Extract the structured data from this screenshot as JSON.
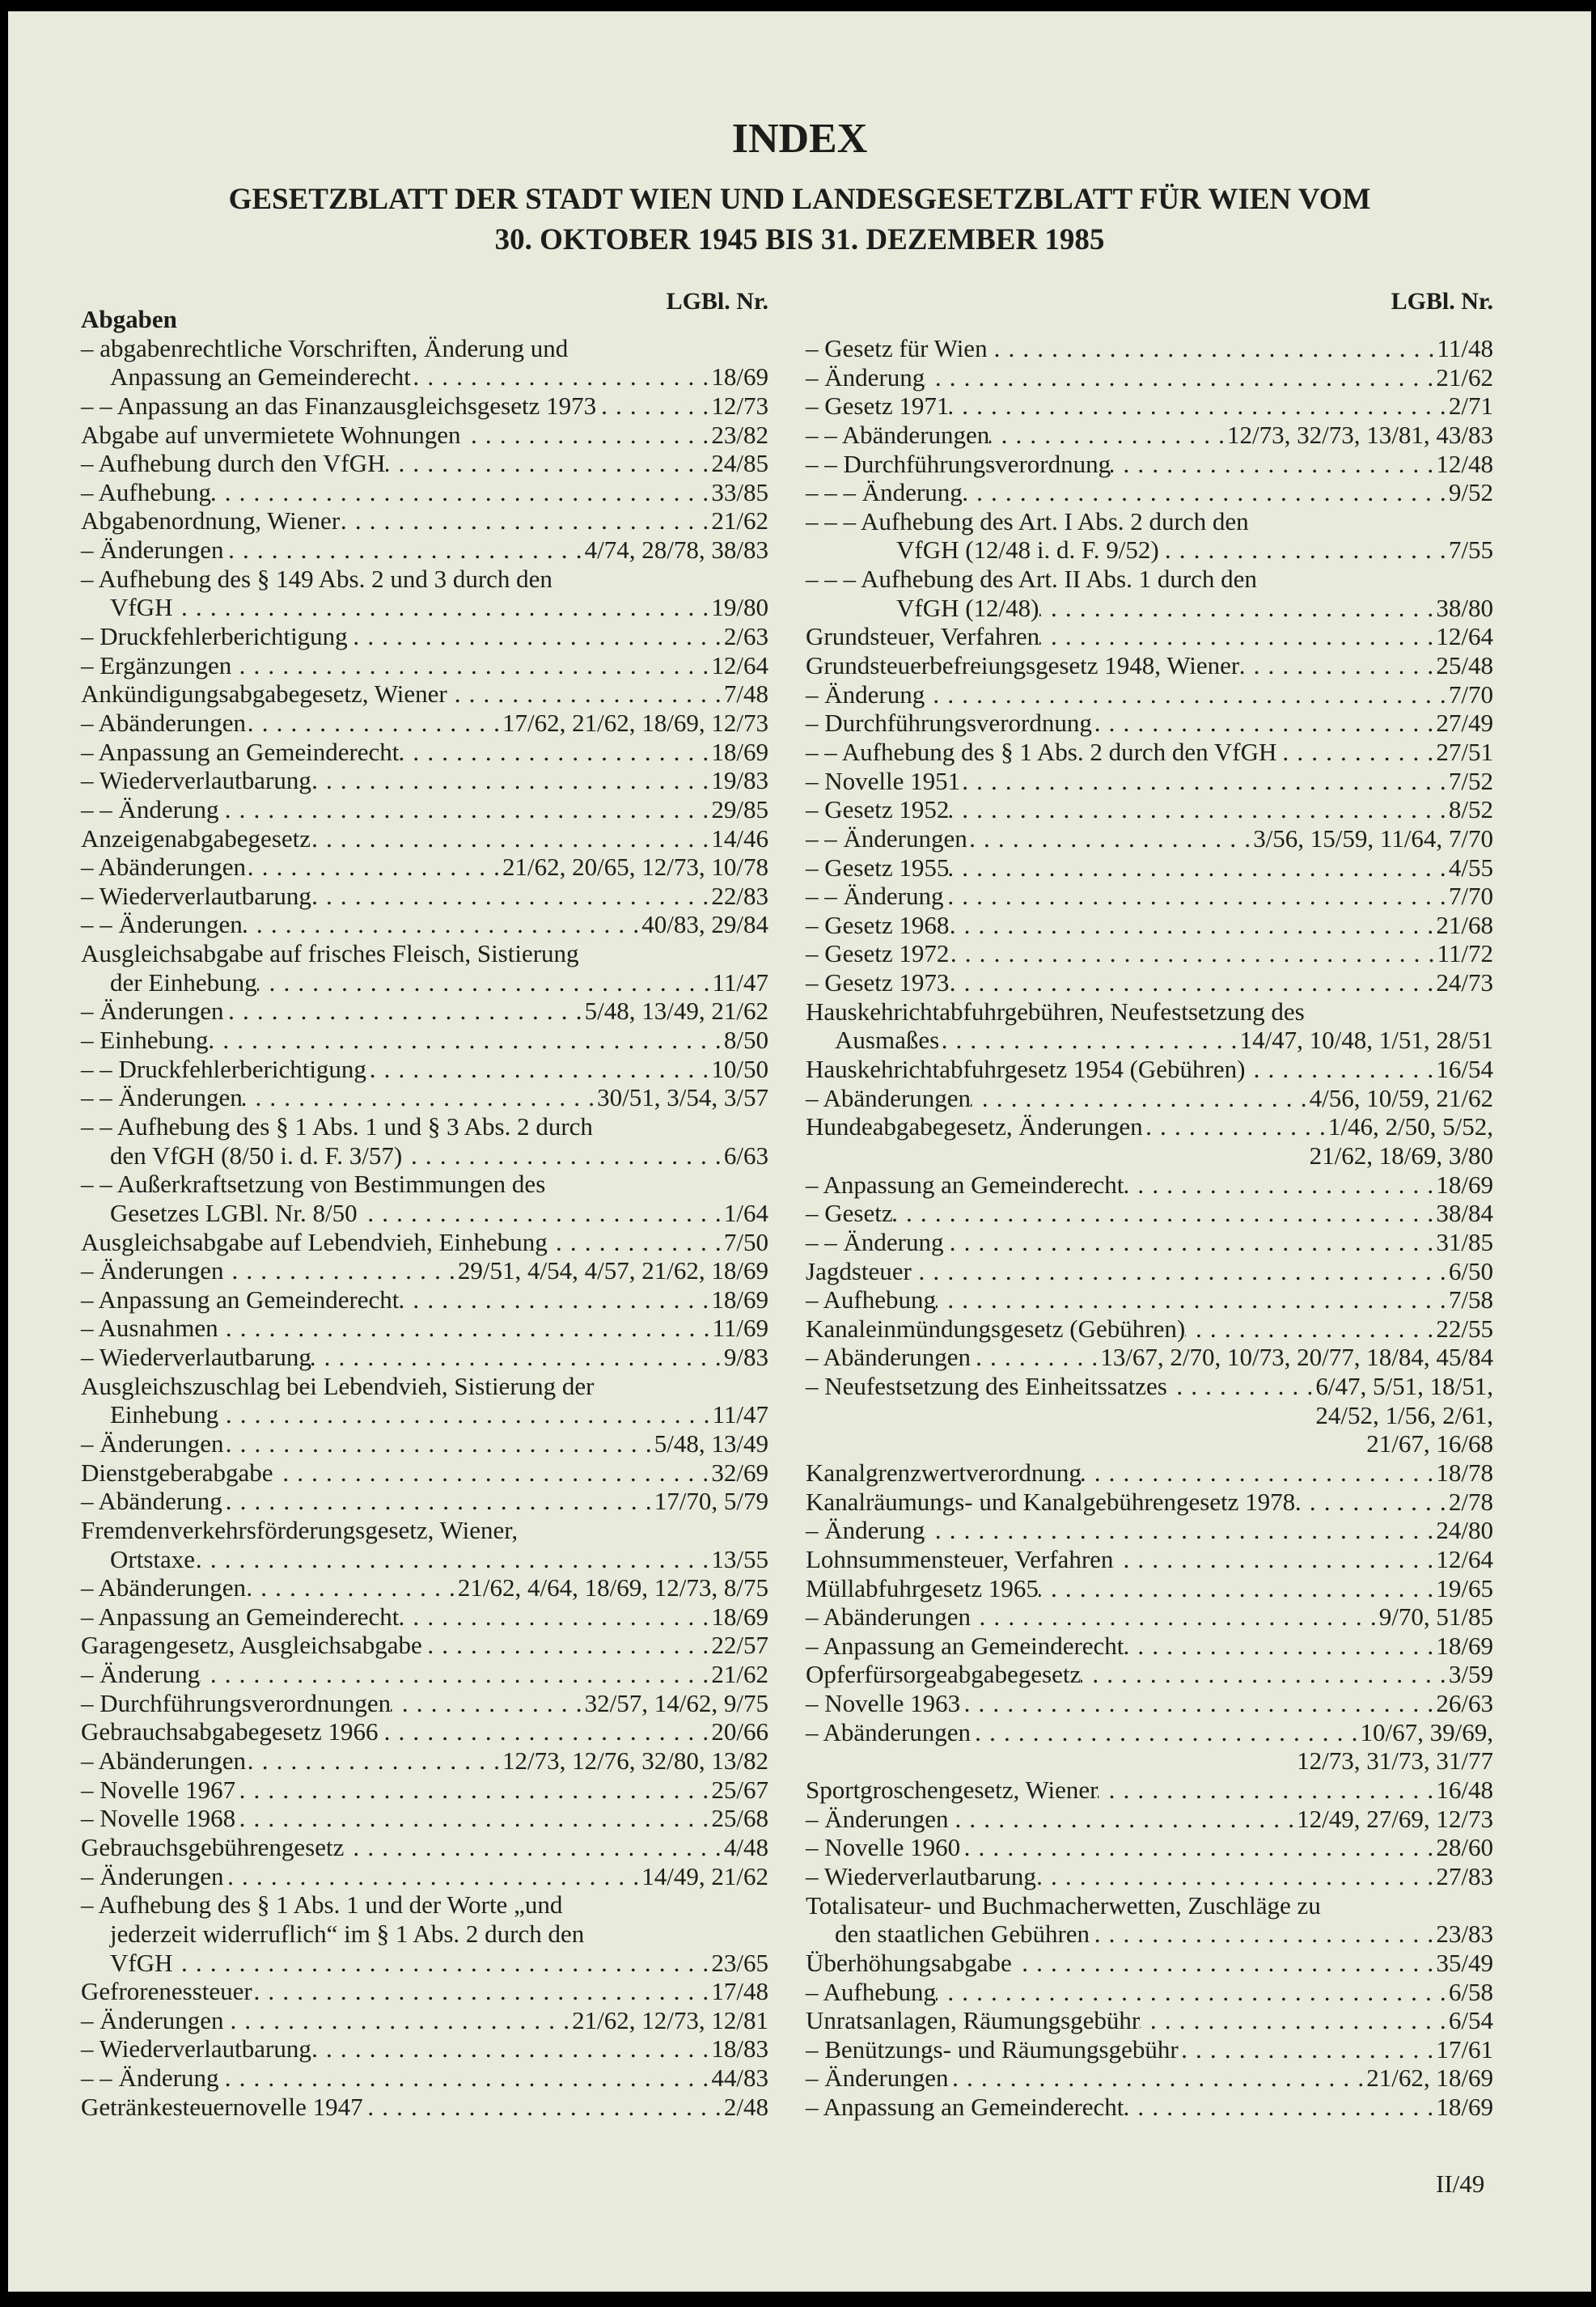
{
  "title": "INDEX",
  "subtitle": [
    "GESETZBLATT DER STADT WIEN UND LANDESGESETZBLATT FÜR WIEN VOM",
    "30. OKTOBER 1945 BIS 31. DEZEMBER 1985"
  ],
  "column_header": "LGBl. Nr.",
  "page_number": "II/49",
  "left": [
    {
      "t": "Abgaben",
      "head": true
    },
    {
      "t": "– abgabenrechtliche Vorschriften, Änderung und"
    },
    {
      "t": "Anpassung an Gemeinderecht",
      "r": "18/69",
      "cont": 1
    },
    {
      "t": "– – Anpassung an das Finanzausgleichsgesetz 1973",
      "r": "12/73"
    },
    {
      "t": "Abgabe auf unvermietete Wohnungen",
      "r": "23/82"
    },
    {
      "t": "– Aufhebung durch den VfGH",
      "r": "24/85"
    },
    {
      "t": "– Aufhebung",
      "r": "33/85"
    },
    {
      "t": "Abgabenordnung, Wiener",
      "r": "21/62"
    },
    {
      "t": "– Änderungen",
      "r": "4/74, 28/78, 38/83"
    },
    {
      "t": "– Aufhebung des § 149 Abs. 2 und 3 durch den"
    },
    {
      "t": "VfGH",
      "r": "19/80",
      "cont": 1
    },
    {
      "t": "– Druckfehlerberichtigung",
      "r": "2/63"
    },
    {
      "t": "– Ergänzungen",
      "r": "12/64"
    },
    {
      "t": "Ankündigungsabgabegesetz, Wiener",
      "r": "7/48"
    },
    {
      "t": "– Abänderungen",
      "r": "17/62, 21/62, 18/69, 12/73"
    },
    {
      "t": "– Anpassung an Gemeinderecht",
      "r": "18/69"
    },
    {
      "t": "– Wiederverlautbarung",
      "r": "19/83"
    },
    {
      "t": "– – Änderung",
      "r": "29/85"
    },
    {
      "t": "Anzeigenabgabegesetz",
      "r": "14/46"
    },
    {
      "t": "– Abänderungen",
      "r": "21/62, 20/65, 12/73, 10/78"
    },
    {
      "t": "– Wiederverlautbarung",
      "r": "22/83"
    },
    {
      "t": "– – Änderungen",
      "r": "40/83, 29/84"
    },
    {
      "t": "Ausgleichsabgabe auf frisches Fleisch, Sistierung"
    },
    {
      "t": "der Einhebung",
      "r": "11/47",
      "cont": 1
    },
    {
      "t": "– Änderungen",
      "r": "5/48, 13/49, 21/62"
    },
    {
      "t": "– Einhebung",
      "r": "8/50"
    },
    {
      "t": "– – Druckfehlerberichtigung",
      "r": "10/50"
    },
    {
      "t": "– – Änderungen",
      "r": "30/51, 3/54, 3/57"
    },
    {
      "t": "– – Aufhebung des § 1 Abs. 1 und § 3 Abs. 2 durch"
    },
    {
      "t": "den VfGH (8/50 i. d. F. 3/57)",
      "r": "6/63",
      "cont": 1
    },
    {
      "t": "– – Außerkraftsetzung von Bestimmungen des"
    },
    {
      "t": "Gesetzes LGBl. Nr. 8/50",
      "r": "1/64",
      "cont": 1
    },
    {
      "t": "Ausgleichsabgabe auf Lebendvieh, Einhebung",
      "r": "7/50"
    },
    {
      "t": "– Änderungen",
      "r": "29/51, 4/54, 4/57, 21/62, 18/69"
    },
    {
      "t": "– Anpassung an Gemeinderecht",
      "r": "18/69"
    },
    {
      "t": "– Ausnahmen",
      "r": "11/69"
    },
    {
      "t": "– Wiederverlautbarung",
      "r": "9/83"
    },
    {
      "t": "Ausgleichszuschlag bei Lebendvieh, Sistierung der"
    },
    {
      "t": "Einhebung",
      "r": "11/47",
      "cont": 1
    },
    {
      "t": "– Änderungen",
      "r": "5/48, 13/49"
    },
    {
      "t": "Dienstgeberabgabe",
      "r": "32/69"
    },
    {
      "t": "– Abänderung",
      "r": "17/70, 5/79"
    },
    {
      "t": "Fremdenverkehrsförderungsgesetz, Wiener,"
    },
    {
      "t": "Ortstaxe",
      "r": "13/55",
      "cont": 1
    },
    {
      "t": "– Abänderungen",
      "r": "21/62, 4/64, 18/69, 12/73, 8/75"
    },
    {
      "t": "– Anpassung an Gemeinderecht",
      "r": "18/69"
    },
    {
      "t": "Garagengesetz, Ausgleichsabgabe",
      "r": "22/57"
    },
    {
      "t": "– Änderung",
      "r": "21/62"
    },
    {
      "t": "– Durchführungsverordnungen",
      "r": "32/57, 14/62, 9/75"
    },
    {
      "t": "Gebrauchsabgabegesetz 1966",
      "r": "20/66"
    },
    {
      "t": "– Abänderungen",
      "r": "12/73, 12/76, 32/80, 13/82"
    },
    {
      "t": "– Novelle 1967",
      "r": "25/67"
    },
    {
      "t": "– Novelle 1968",
      "r": "25/68"
    },
    {
      "t": "Gebrauchsgebührengesetz",
      "r": "4/48"
    },
    {
      "t": "– Änderungen",
      "r": "14/49, 21/62"
    },
    {
      "t": "– Aufhebung des § 1 Abs. 1 und der Worte „und"
    },
    {
      "t": "jederzeit widerruflich“ im § 1 Abs. 2 durch den",
      "cont": 1
    },
    {
      "t": "VfGH",
      "r": "23/65",
      "cont": 1
    },
    {
      "t": "Gefrorenessteuer",
      "r": "17/48"
    },
    {
      "t": "– Änderungen",
      "r": "21/62, 12/73, 12/81"
    },
    {
      "t": "– Wiederverlautbarung",
      "r": "18/83"
    },
    {
      "t": "– – Änderung",
      "r": "44/83"
    },
    {
      "t": "Getränkesteuernovelle 1947",
      "r": "2/48"
    }
  ],
  "right": [
    {
      "t": "– Gesetz für Wien",
      "r": "11/48"
    },
    {
      "t": "– Änderung",
      "r": "21/62"
    },
    {
      "t": "– Gesetz 1971",
      "r": "2/71"
    },
    {
      "t": "– – Abänderungen",
      "r": "12/73, 32/73, 13/81, 43/83"
    },
    {
      "t": "– – Durchführungsverordnung",
      "r": "12/48"
    },
    {
      "t": "– – – Änderung",
      "r": "9/52"
    },
    {
      "t": "– – – Aufhebung des Art. I Abs. 2 durch den"
    },
    {
      "t": "VfGH (12/48 i. d. F. 9/52)",
      "r": "7/55",
      "cont": 3
    },
    {
      "t": "– – – Aufhebung des Art. II Abs. 1 durch den"
    },
    {
      "t": "VfGH (12/48)",
      "r": "38/80",
      "cont": 3
    },
    {
      "t": "Grundsteuer, Verfahren",
      "r": "12/64"
    },
    {
      "t": "Grundsteuerbefreiungsgesetz 1948, Wiener",
      "r": "25/48"
    },
    {
      "t": "– Änderung",
      "r": "7/70"
    },
    {
      "t": "– Durchführungsverordnung",
      "r": "27/49"
    },
    {
      "t": "– – Aufhebung des § 1 Abs. 2 durch den VfGH",
      "r": "27/51"
    },
    {
      "t": "– Novelle 1951",
      "r": "7/52"
    },
    {
      "t": "– Gesetz 1952",
      "r": "8/52"
    },
    {
      "t": "– – Änderungen",
      "r": "3/56, 15/59, 11/64, 7/70"
    },
    {
      "t": "– Gesetz 1955",
      "r": "4/55"
    },
    {
      "t": "– – Änderung",
      "r": "7/70"
    },
    {
      "t": "– Gesetz 1968",
      "r": "21/68"
    },
    {
      "t": "– Gesetz 1972",
      "r": "11/72"
    },
    {
      "t": "– Gesetz 1973",
      "r": "24/73"
    },
    {
      "t": "Hauskehrichtabfuhrgebühren, Neufestsetzung des"
    },
    {
      "t": "Ausmaßes",
      "r": "14/47, 10/48, 1/51, 28/51",
      "cont": 1
    },
    {
      "t": "Hauskehrichtabfuhrgesetz 1954 (Gebühren)",
      "r": "16/54"
    },
    {
      "t": "– Abänderungen",
      "r": "4/56, 10/59, 21/62"
    },
    {
      "t": "Hundeabgabegesetz, Änderungen",
      "r": "1/46, 2/50, 5/52,"
    },
    {
      "r": "21/62, 18/69, 3/80"
    },
    {
      "t": "– Anpassung an Gemeinderecht",
      "r": "18/69"
    },
    {
      "t": "– Gesetz",
      "r": "38/84"
    },
    {
      "t": "– – Änderung",
      "r": "31/85"
    },
    {
      "t": "Jagdsteuer",
      "r": "6/50"
    },
    {
      "t": "– Aufhebung",
      "r": "7/58"
    },
    {
      "t": "Kanaleinmündungsgesetz (Gebühren)",
      "r": "22/55"
    },
    {
      "t": "– Abänderungen",
      "r": "13/67, 2/70, 10/73, 20/77, 18/84, 45/84"
    },
    {
      "t": "– Neufestsetzung des Einheitssatzes",
      "r": "6/47, 5/51, 18/51,"
    },
    {
      "r": "24/52, 1/56, 2/61,"
    },
    {
      "r": "21/67, 16/68"
    },
    {
      "t": "Kanalgrenzwertverordnung",
      "r": "18/78"
    },
    {
      "t": "Kanalräumungs- und Kanalgebührengesetz 1978",
      "r": "2/78"
    },
    {
      "t": "– Änderung",
      "r": "24/80"
    },
    {
      "t": "Lohnsummensteuer, Verfahren",
      "r": "12/64"
    },
    {
      "t": "Müllabfuhrgesetz 1965",
      "r": "19/65"
    },
    {
      "t": "– Abänderungen",
      "r": "9/70, 51/85"
    },
    {
      "t": "– Anpassung an Gemeinderecht",
      "r": "18/69"
    },
    {
      "t": "Opferfürsorgeabgabegesetz",
      "r": "3/59"
    },
    {
      "t": "– Novelle 1963",
      "r": "26/63"
    },
    {
      "t": "– Abänderungen",
      "r": "10/67, 39/69,"
    },
    {
      "r": "12/73, 31/73, 31/77"
    },
    {
      "t": "Sportgroschengesetz, Wiener",
      "r": "16/48"
    },
    {
      "t": "– Änderungen",
      "r": "12/49, 27/69, 12/73"
    },
    {
      "t": "– Novelle 1960",
      "r": "28/60"
    },
    {
      "t": "– Wiederverlautbarung",
      "r": "27/83"
    },
    {
      "t": "Totalisateur- und Buchmacherwetten, Zuschläge zu"
    },
    {
      "t": "den staatlichen Gebühren",
      "r": "23/83",
      "cont": 1
    },
    {
      "t": "Überhöhungsabgabe",
      "r": "35/49"
    },
    {
      "t": "– Aufhebung",
      "r": "6/58"
    },
    {
      "t": "Unratsanlagen, Räumungsgebühr",
      "r": "6/54"
    },
    {
      "t": "– Benützungs- und Räumungsgebühr",
      "r": "17/61"
    },
    {
      "t": "– Änderungen",
      "r": "21/62, 18/69"
    },
    {
      "t": "– Anpassung an Gemeinderecht",
      "r": "18/69"
    }
  ]
}
